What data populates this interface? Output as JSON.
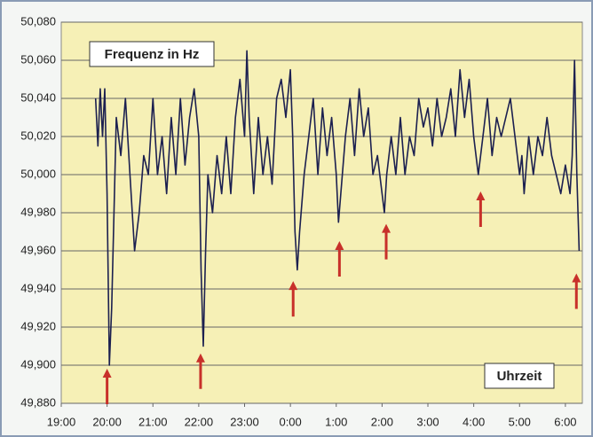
{
  "chart_data": {
    "type": "line",
    "annotations": [
      "Frequenz in Hz",
      "Uhrzeit"
    ],
    "xlim": [
      19,
      30.37
    ],
    "xticks": [
      {
        "value": 19,
        "label": "19:00"
      },
      {
        "value": 20,
        "label": "20:00"
      },
      {
        "value": 21,
        "label": "21:00"
      },
      {
        "value": 22,
        "label": "22:00"
      },
      {
        "value": 23,
        "label": "23:00"
      },
      {
        "value": 24,
        "label": "0:00"
      },
      {
        "value": 25,
        "label": "1:00"
      },
      {
        "value": 26,
        "label": "2:00"
      },
      {
        "value": 27,
        "label": "3:00"
      },
      {
        "value": 28,
        "label": "4:00"
      },
      {
        "value": 29,
        "label": "5:00"
      },
      {
        "value": 30,
        "label": "6:00"
      }
    ],
    "ylim": [
      49.88,
      50.08
    ],
    "yticks": [
      {
        "value": 49.88,
        "label": "49,880"
      },
      {
        "value": 49.9,
        "label": "49,900"
      },
      {
        "value": 49.92,
        "label": "49,920"
      },
      {
        "value": 49.94,
        "label": "49,940"
      },
      {
        "value": 49.96,
        "label": "49,960"
      },
      {
        "value": 49.98,
        "label": "49,980"
      },
      {
        "value": 50.0,
        "label": "50,000"
      },
      {
        "value": 50.02,
        "label": "50,020"
      },
      {
        "value": 50.04,
        "label": "50,040"
      },
      {
        "value": 50.06,
        "label": "50,060"
      },
      {
        "value": 50.08,
        "label": "50,080"
      }
    ],
    "grid": true,
    "series": [
      {
        "color": "#1c2050",
        "x": [
          19.75,
          19.8,
          19.85,
          19.9,
          19.95,
          20.0,
          20.05,
          20.1,
          20.15,
          20.2,
          20.3,
          20.4,
          20.5,
          20.6,
          20.7,
          20.8,
          20.9,
          21.0,
          21.1,
          21.2,
          21.3,
          21.4,
          21.5,
          21.6,
          21.7,
          21.8,
          21.9,
          22.0,
          22.05,
          22.1,
          22.15,
          22.2,
          22.3,
          22.4,
          22.5,
          22.6,
          22.7,
          22.8,
          22.9,
          23.0,
          23.05,
          23.1,
          23.2,
          23.3,
          23.4,
          23.5,
          23.6,
          23.7,
          23.8,
          23.9,
          24.0,
          24.05,
          24.1,
          24.15,
          24.2,
          24.3,
          24.4,
          24.5,
          24.6,
          24.7,
          24.8,
          24.9,
          25.0,
          25.05,
          25.1,
          25.2,
          25.3,
          25.4,
          25.5,
          25.6,
          25.7,
          25.8,
          25.9,
          26.0,
          26.05,
          26.1,
          26.2,
          26.3,
          26.4,
          26.5,
          26.6,
          26.7,
          26.8,
          26.9,
          27.0,
          27.1,
          27.2,
          27.3,
          27.4,
          27.5,
          27.6,
          27.7,
          27.8,
          27.9,
          28.0,
          28.1,
          28.2,
          28.3,
          28.4,
          28.5,
          28.6,
          28.8,
          29.0,
          29.05,
          29.1,
          29.2,
          29.3,
          29.4,
          29.5,
          29.6,
          29.7,
          29.8,
          29.9,
          30.0,
          30.1,
          30.15,
          30.2,
          30.25,
          30.3
        ],
        "values": [
          50.04,
          50.015,
          50.045,
          50.02,
          50.045,
          49.99,
          49.9,
          49.93,
          49.98,
          50.03,
          50.01,
          50.04,
          50.0,
          49.96,
          49.98,
          50.01,
          50.0,
          50.04,
          50.0,
          50.02,
          49.99,
          50.03,
          50.0,
          50.04,
          50.005,
          50.03,
          50.045,
          50.02,
          49.95,
          49.91,
          49.96,
          50.0,
          49.98,
          50.01,
          49.99,
          50.02,
          49.99,
          50.03,
          50.05,
          50.02,
          50.065,
          50.03,
          49.99,
          50.03,
          50.0,
          50.02,
          49.995,
          50.04,
          50.05,
          50.03,
          50.055,
          50.02,
          49.97,
          49.95,
          49.97,
          50.0,
          50.02,
          50.04,
          50.0,
          50.035,
          50.01,
          50.03,
          50.0,
          49.975,
          49.99,
          50.02,
          50.04,
          50.01,
          50.045,
          50.02,
          50.035,
          50.0,
          50.01,
          49.99,
          49.98,
          50.0,
          50.02,
          50.0,
          50.03,
          50.0,
          50.02,
          50.01,
          50.04,
          50.025,
          50.035,
          50.015,
          50.04,
          50.02,
          50.03,
          50.045,
          50.02,
          50.055,
          50.03,
          50.05,
          50.02,
          50.0,
          50.02,
          50.04,
          50.01,
          50.03,
          50.02,
          50.04,
          50.0,
          50.01,
          49.99,
          50.02,
          50.0,
          50.02,
          50.01,
          50.03,
          50.01,
          50.0,
          49.99,
          50.005,
          49.99,
          50.01,
          50.06,
          50.0,
          49.96
        ]
      }
    ],
    "arrows": {
      "color": "#c8302a",
      "x": [
        20.0,
        22.04,
        24.06,
        25.07,
        26.09,
        28.15,
        30.24
      ],
      "y": [
        49.9,
        49.908,
        49.946,
        49.967,
        49.976,
        49.993,
        49.95
      ]
    }
  }
}
